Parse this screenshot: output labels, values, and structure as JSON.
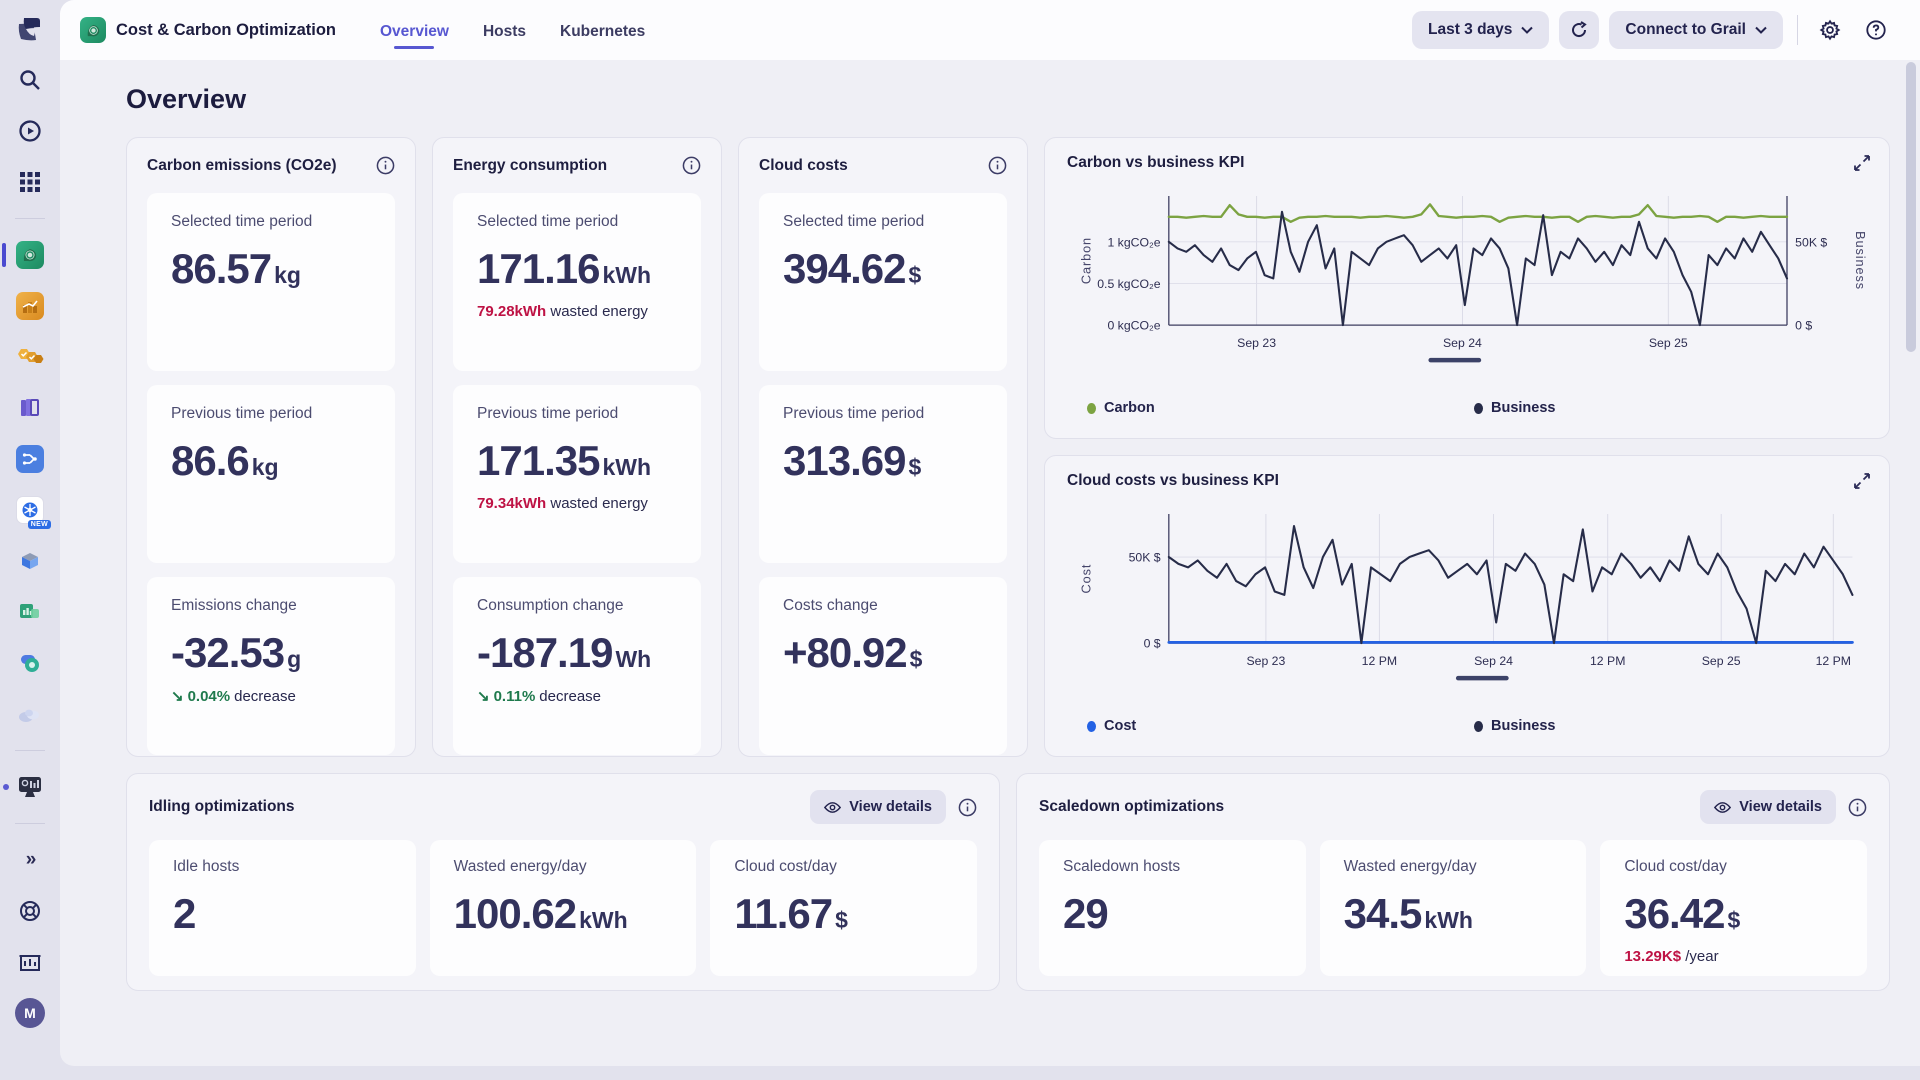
{
  "colors": {
    "accent": "#5757d1",
    "negative_red": "#be1244",
    "positive_green": "#1f7a4d",
    "carbon_line": "#7ca342",
    "business_line": "#272c49",
    "cost_line": "#2361e4"
  },
  "nav": {
    "app_title": "Cost & Carbon Optimization",
    "tabs": [
      {
        "label": "Overview"
      },
      {
        "label": "Hosts"
      },
      {
        "label": "Kubernetes"
      }
    ],
    "timeframe_label": "Last 3 days",
    "grail_label": "Connect to Grail"
  },
  "sidebar": {
    "new_badge": "NEW",
    "avatar_initial": "M"
  },
  "page": {
    "title": "Overview"
  },
  "kpi_cards": [
    {
      "title": "Carbon emissions (CO2e)",
      "tiles": [
        {
          "label": "Selected time period",
          "value": "86.57",
          "unit": "kg"
        },
        {
          "label": "Previous time period",
          "value": "86.6",
          "unit": "kg"
        },
        {
          "label": "Emissions change",
          "value": "-32.53",
          "unit": "g",
          "trend": {
            "arrow": "↘",
            "pct": "0.04%",
            "word": "decrease"
          }
        }
      ]
    },
    {
      "title": "Energy consumption",
      "tiles": [
        {
          "label": "Selected time period",
          "value": "171.16",
          "unit": "kWh",
          "sub": {
            "highlight": "79.28kWh",
            "text": "wasted energy"
          }
        },
        {
          "label": "Previous time period",
          "value": "171.35",
          "unit": "kWh",
          "sub": {
            "highlight": "79.34kWh",
            "text": "wasted energy"
          }
        },
        {
          "label": "Consumption change",
          "value": "-187.19",
          "unit": "Wh",
          "trend": {
            "arrow": "↘",
            "pct": "0.11%",
            "word": "decrease"
          }
        }
      ]
    },
    {
      "title": "Cloud costs",
      "tiles": [
        {
          "label": "Selected time period",
          "value": "394.62",
          "unit": "$"
        },
        {
          "label": "Previous time period",
          "value": "313.69",
          "unit": "$"
        },
        {
          "label": "Costs change",
          "value": "+80.92",
          "unit": "$"
        }
      ]
    }
  ],
  "optimizations": [
    {
      "title": "Idling optimizations",
      "action": "View details",
      "tiles": [
        {
          "label": "Idle hosts",
          "value": "2",
          "unit": ""
        },
        {
          "label": "Wasted energy/day",
          "value": "100.62",
          "unit": "kWh"
        },
        {
          "label": "Cloud cost/day",
          "value": "11.67",
          "unit": "$"
        }
      ]
    },
    {
      "title": "Scaledown optimizations",
      "action": "View details",
      "tiles": [
        {
          "label": "Scaledown hosts",
          "value": "29",
          "unit": ""
        },
        {
          "label": "Wasted energy/day",
          "value": "34.5",
          "unit": "kWh"
        },
        {
          "label": "Cloud cost/day",
          "value": "36.42",
          "unit": "$",
          "sub": {
            "highlight": "13.29K$",
            "text": "/year"
          }
        }
      ]
    }
  ],
  "chart_data": [
    {
      "type": "line",
      "title": "Carbon vs business KPI",
      "left_axis": {
        "label": "Carbon",
        "max": 1.55,
        "ticks": [
          {
            "v": 0,
            "t": "0 kgCO₂e"
          },
          {
            "v": 0.5,
            "t": "0.5 kgCO₂e"
          },
          {
            "v": 1,
            "t": "1 kgCO₂e"
          }
        ]
      },
      "right_axis": {
        "label": "Business",
        "max": 77.5,
        "ticks": [
          {
            "v": 0,
            "t": "0 $"
          },
          {
            "v": 50,
            "t": "50K $"
          }
        ]
      },
      "x_ticks": [
        {
          "f": 0.142,
          "t": "Sep 23"
        },
        {
          "f": 0.475,
          "t": "Sep 24"
        },
        {
          "f": 0.808,
          "t": "Sep 25"
        }
      ],
      "legend": [
        {
          "name": "Carbon",
          "color": "#7ca342"
        },
        {
          "name": "Business",
          "color": "#272c49"
        }
      ],
      "series": [
        {
          "name": "Carbon",
          "axis": "left",
          "color": "#7ca342",
          "width": 2.6,
          "values": [
            1.3,
            1.3,
            1.29,
            1.3,
            1.31,
            1.3,
            1.3,
            1.44,
            1.33,
            1.3,
            1.3,
            1.29,
            1.3,
            1.3,
            1.24,
            1.29,
            1.3,
            1.3,
            1.31,
            1.3,
            1.3,
            1.3,
            1.29,
            1.3,
            1.3,
            1.31,
            1.3,
            1.29,
            1.3,
            1.33,
            1.45,
            1.31,
            1.3,
            1.29,
            1.3,
            1.3,
            1.31,
            1.3,
            1.24,
            1.29,
            1.3,
            1.31,
            1.3,
            1.3,
            1.29,
            1.3,
            1.3,
            1.24,
            1.3,
            1.31,
            1.3,
            1.29,
            1.3,
            1.3,
            1.33,
            1.44,
            1.31,
            1.3,
            1.29,
            1.3,
            1.3,
            1.31,
            1.3,
            1.24,
            1.3,
            1.3,
            1.29,
            1.3,
            1.31,
            1.3,
            1.3,
            1.3
          ]
        },
        {
          "name": "Business",
          "axis": "right",
          "color": "#272c49",
          "width": 2.3,
          "values": [
            50,
            46,
            44,
            48,
            42,
            38,
            46,
            36,
            33,
            40,
            44,
            30,
            28,
            68,
            44,
            32,
            50,
            60,
            34,
            46,
            0,
            44,
            40,
            36,
            46,
            50,
            52,
            54,
            48,
            38,
            42,
            46,
            40,
            48,
            12,
            46,
            42,
            52,
            46,
            34,
            0,
            40,
            36,
            66,
            30,
            44,
            40,
            52,
            46,
            38,
            44,
            36,
            48,
            42,
            62,
            46,
            40,
            52,
            44,
            30,
            20,
            0,
            42,
            36,
            46,
            40,
            52,
            44,
            56,
            48,
            40,
            28
          ]
        }
      ]
    },
    {
      "type": "line",
      "title": "Cloud costs vs business KPI",
      "left_axis": {
        "label": "Cost",
        "max": 75,
        "ticks": [
          {
            "v": 0,
            "t": "0 $"
          },
          {
            "v": 50,
            "t": "50K $"
          }
        ]
      },
      "x_ticks": [
        {
          "f": 0.142,
          "t": "Sep 23"
        },
        {
          "f": 0.308,
          "t": "12 PM"
        },
        {
          "f": 0.475,
          "t": "Sep 24"
        },
        {
          "f": 0.642,
          "t": "12 PM"
        },
        {
          "f": 0.808,
          "t": "Sep 25"
        },
        {
          "f": 0.972,
          "t": "12 PM"
        }
      ],
      "legend": [
        {
          "name": "Cost",
          "color": "#2361e4"
        },
        {
          "name": "Business",
          "color": "#272c49"
        }
      ],
      "series": [
        {
          "name": "Cost",
          "axis": "left",
          "color": "#2361e4",
          "width": 3,
          "const_value": 0.4,
          "points": 72
        },
        {
          "name": "Business",
          "axis": "left",
          "color": "#272c49",
          "width": 2.3,
          "values": [
            50,
            46,
            44,
            48,
            42,
            38,
            46,
            36,
            33,
            40,
            44,
            30,
            28,
            68,
            44,
            32,
            50,
            60,
            34,
            46,
            0,
            44,
            40,
            36,
            46,
            50,
            52,
            54,
            48,
            38,
            42,
            46,
            40,
            48,
            12,
            46,
            42,
            52,
            46,
            34,
            0,
            40,
            36,
            66,
            30,
            44,
            40,
            52,
            46,
            38,
            44,
            36,
            48,
            42,
            62,
            46,
            40,
            52,
            44,
            30,
            20,
            0,
            42,
            36,
            46,
            40,
            52,
            44,
            56,
            48,
            40,
            28
          ]
        }
      ]
    }
  ]
}
